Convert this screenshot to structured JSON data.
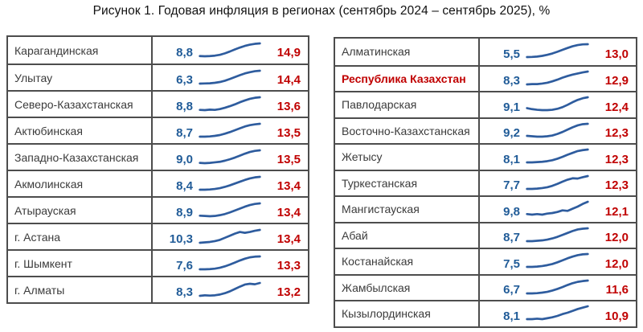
{
  "title": "Рисунок 1. Годовая инфляция в регионах (сентябрь 2024 – сентябрь 2025), %",
  "colors": {
    "title_text": "#111111",
    "region_text": "#3b3b3b",
    "highlight_text": "#c00000",
    "start_value": "#215c98",
    "end_value": "#c00000",
    "sparkline": "#2e5c9e",
    "border": "#4d4d4d",
    "bg": "#ffffff"
  },
  "chart_data": {
    "type": "table",
    "title": "Рисунок 1. Годовая инфляция в регионах (сентябрь 2024 – сентябрь 2025), %",
    "unit": "%",
    "decimal_separator": ",",
    "period": {
      "start_label": "сентябрь 2024",
      "end_label": "сентябрь 2025"
    },
    "columns": [
      "region",
      "start_value",
      "trend_sparkline",
      "end_value"
    ],
    "left_table": {
      "rows": [
        {
          "region": "Карагандинская",
          "start": "8,8",
          "start_value": 8.8,
          "end": "14,9",
          "end_value": 14.9,
          "highlight": false,
          "spark": [
            8.8,
            8.7,
            8.8,
            9.0,
            9.4,
            10.1,
            11.0,
            12.0,
            12.9,
            13.7,
            14.3,
            14.7,
            14.9
          ]
        },
        {
          "region": "Улытау",
          "start": "6,3",
          "start_value": 6.3,
          "end": "14,4",
          "end_value": 14.4,
          "highlight": false,
          "spark": [
            6.3,
            6.4,
            6.5,
            6.8,
            7.3,
            8.1,
            9.2,
            10.4,
            11.6,
            12.7,
            13.5,
            14.1,
            14.4
          ]
        },
        {
          "region": "Северо-Казахстанская",
          "start": "8,8",
          "start_value": 8.8,
          "end": "13,6",
          "end_value": 13.6,
          "highlight": false,
          "spark": [
            8.8,
            8.7,
            8.9,
            8.8,
            9.1,
            9.6,
            10.2,
            10.9,
            11.7,
            12.4,
            13.0,
            13.4,
            13.6
          ]
        },
        {
          "region": "Актюбинская",
          "start": "8,7",
          "start_value": 8.7,
          "end": "13,5",
          "end_value": 13.5,
          "highlight": false,
          "spark": [
            8.7,
            8.7,
            8.8,
            9.0,
            9.3,
            9.8,
            10.4,
            11.1,
            11.8,
            12.5,
            13.0,
            13.3,
            13.5
          ]
        },
        {
          "region": "Западно-Казахстанская",
          "start": "9,0",
          "start_value": 9.0,
          "end": "13,5",
          "end_value": 13.5,
          "highlight": false,
          "spark": [
            9.0,
            8.9,
            9.0,
            9.2,
            9.4,
            9.8,
            10.3,
            10.9,
            11.6,
            12.3,
            12.9,
            13.3,
            13.5
          ]
        },
        {
          "region": "Акмолинская",
          "start": "8,4",
          "start_value": 8.4,
          "end": "13,4",
          "end_value": 13.4,
          "highlight": false,
          "spark": [
            8.4,
            8.4,
            8.5,
            8.7,
            9.0,
            9.5,
            10.1,
            10.8,
            11.5,
            12.2,
            12.8,
            13.2,
            13.4
          ]
        },
        {
          "region": "Атырауская",
          "start": "8,9",
          "start_value": 8.9,
          "end": "13,4",
          "end_value": 13.4,
          "highlight": false,
          "spark": [
            8.9,
            8.8,
            8.7,
            8.8,
            9.1,
            9.5,
            10.1,
            10.8,
            11.5,
            12.2,
            12.8,
            13.2,
            13.4
          ]
        },
        {
          "region": "г. Астана",
          "start": "10,3",
          "start_value": 10.3,
          "end": "13,4",
          "end_value": 13.4,
          "highlight": false,
          "spark": [
            10.3,
            10.4,
            10.5,
            10.7,
            11.0,
            11.5,
            12.0,
            12.5,
            12.9,
            12.7,
            12.9,
            13.2,
            13.4
          ]
        },
        {
          "region": "г. Шымкент",
          "start": "7,6",
          "start_value": 7.6,
          "end": "13,3",
          "end_value": 13.3,
          "highlight": false,
          "spark": [
            7.6,
            7.6,
            7.7,
            7.9,
            8.3,
            8.9,
            9.7,
            10.6,
            11.5,
            12.3,
            12.9,
            13.2,
            13.3
          ]
        },
        {
          "region": "г. Алматы",
          "start": "8,3",
          "start_value": 8.3,
          "end": "13,2",
          "end_value": 13.2,
          "highlight": false,
          "spark": [
            8.3,
            8.5,
            8.4,
            8.5,
            8.8,
            9.3,
            10.0,
            10.9,
            11.8,
            12.6,
            12.9,
            12.7,
            13.2
          ]
        }
      ]
    },
    "right_table": {
      "rows": [
        {
          "region": "Алматинская",
          "start": "5,5",
          "start_value": 5.5,
          "end": "13,0",
          "end_value": 13.0,
          "highlight": false,
          "spark": [
            5.5,
            5.6,
            5.8,
            6.2,
            6.8,
            7.6,
            8.6,
            9.7,
            10.8,
            11.8,
            12.5,
            12.9,
            13.0
          ]
        },
        {
          "region": "Республика Казахстан",
          "start": "8,3",
          "start_value": 8.3,
          "end": "12,9",
          "end_value": 12.9,
          "highlight": true,
          "spark": [
            8.3,
            8.4,
            8.4,
            8.6,
            8.9,
            9.4,
            10.0,
            10.7,
            11.3,
            11.8,
            12.2,
            12.6,
            12.9
          ]
        },
        {
          "region": "Павлодарская",
          "start": "9,1",
          "start_value": 9.1,
          "end": "12,4",
          "end_value": 12.4,
          "highlight": false,
          "spark": [
            9.1,
            8.8,
            8.6,
            8.5,
            8.5,
            8.6,
            8.9,
            9.4,
            10.1,
            10.9,
            11.6,
            12.1,
            12.4
          ]
        },
        {
          "region": "Восточно-Казахстанская",
          "start": "9,2",
          "start_value": 9.2,
          "end": "12,3",
          "end_value": 12.3,
          "highlight": false,
          "spark": [
            9.2,
            9.1,
            9.0,
            9.0,
            9.1,
            9.3,
            9.7,
            10.2,
            10.8,
            11.4,
            11.9,
            12.2,
            12.3
          ]
        },
        {
          "region": "Жетысу",
          "start": "8,1",
          "start_value": 8.1,
          "end": "12,3",
          "end_value": 12.3,
          "highlight": false,
          "spark": [
            8.1,
            8.1,
            8.2,
            8.3,
            8.5,
            8.8,
            9.3,
            9.9,
            10.6,
            11.2,
            11.8,
            12.1,
            12.3
          ]
        },
        {
          "region": "Туркестанская",
          "start": "7,7",
          "start_value": 7.7,
          "end": "12,3",
          "end_value": 12.3,
          "highlight": false,
          "spark": [
            7.7,
            7.7,
            7.8,
            8.0,
            8.3,
            8.8,
            9.5,
            10.3,
            11.0,
            11.5,
            11.4,
            11.9,
            12.3
          ]
        },
        {
          "region": "Мангистауская",
          "start": "9,8",
          "start_value": 9.8,
          "end": "12,1",
          "end_value": 12.1,
          "highlight": false,
          "spark": [
            9.8,
            9.7,
            9.8,
            9.7,
            9.9,
            10.0,
            10.2,
            10.5,
            10.4,
            10.8,
            11.2,
            11.7,
            12.1
          ]
        },
        {
          "region": "Абай",
          "start": "8,7",
          "start_value": 8.7,
          "end": "12,0",
          "end_value": 12.0,
          "highlight": false,
          "spark": [
            8.7,
            8.7,
            8.8,
            8.9,
            9.1,
            9.4,
            9.8,
            10.3,
            10.8,
            11.3,
            11.7,
            11.9,
            12.0
          ]
        },
        {
          "region": "Костанайская",
          "start": "7,5",
          "start_value": 7.5,
          "end": "12,0",
          "end_value": 12.0,
          "highlight": false,
          "spark": [
            7.5,
            7.5,
            7.6,
            7.8,
            8.1,
            8.5,
            9.1,
            9.8,
            10.5,
            11.1,
            11.6,
            11.9,
            12.0
          ]
        },
        {
          "region": "Жамбылская",
          "start": "6,7",
          "start_value": 6.7,
          "end": "11,6",
          "end_value": 11.6,
          "highlight": false,
          "spark": [
            6.7,
            6.7,
            6.8,
            7.0,
            7.3,
            7.8,
            8.4,
            9.1,
            9.9,
            10.6,
            11.1,
            11.4,
            11.6
          ]
        },
        {
          "region": "Кызылординская",
          "start": "8,1",
          "start_value": 8.1,
          "end": "10,9",
          "end_value": 10.9,
          "highlight": false,
          "spark": [
            8.1,
            8.1,
            8.2,
            8.1,
            8.3,
            8.5,
            8.8,
            9.2,
            9.5,
            9.9,
            10.3,
            10.6,
            10.9
          ]
        }
      ]
    }
  }
}
